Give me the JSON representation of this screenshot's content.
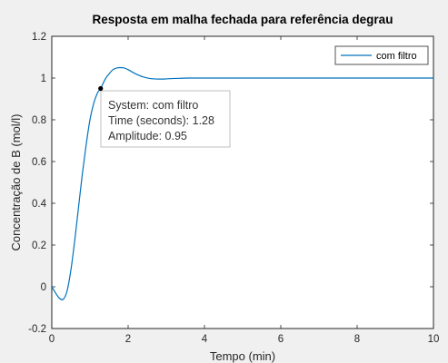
{
  "chart_data": {
    "type": "line",
    "title": "Resposta em malha fechada para referência degrau",
    "xlabel": "Tempo (min)",
    "ylabel": "Concentração de B (mol/l)",
    "xlim": [
      0,
      10
    ],
    "ylim": [
      -0.2,
      1.2
    ],
    "xticks": [
      0,
      2,
      4,
      6,
      8,
      10
    ],
    "yticks": [
      -0.2,
      0,
      0.2,
      0.4,
      0.6,
      0.8,
      1,
      1.2
    ],
    "grid": false,
    "legend_position": "top-right",
    "series": [
      {
        "name": "com filtro",
        "color": "#0072bd",
        "x": [
          0,
          0.1,
          0.2,
          0.3,
          0.4,
          0.5,
          0.6,
          0.7,
          0.8,
          0.9,
          1.0,
          1.1,
          1.2,
          1.28,
          1.4,
          1.5,
          1.6,
          1.7,
          1.8,
          1.9,
          2.0,
          2.2,
          2.4,
          2.6,
          2.8,
          3.0,
          3.2,
          3.4,
          3.6,
          4.0,
          5.0,
          6.0,
          8.0,
          10.0
        ],
        "y": [
          0,
          -0.03,
          -0.055,
          -0.06,
          -0.02,
          0.08,
          0.22,
          0.38,
          0.54,
          0.68,
          0.8,
          0.88,
          0.93,
          0.95,
          0.995,
          1.02,
          1.04,
          1.048,
          1.05,
          1.048,
          1.04,
          1.02,
          1.005,
          0.997,
          0.995,
          0.996,
          0.998,
          0.999,
          1.0,
          1.0,
          1.0,
          1.0,
          1.0,
          1.0
        ]
      }
    ],
    "datatip": {
      "x": 1.28,
      "y": 0.95,
      "lines": [
        "System: com filtro",
        "Time (seconds): 1.28",
        "Amplitude: 0.95"
      ]
    }
  }
}
